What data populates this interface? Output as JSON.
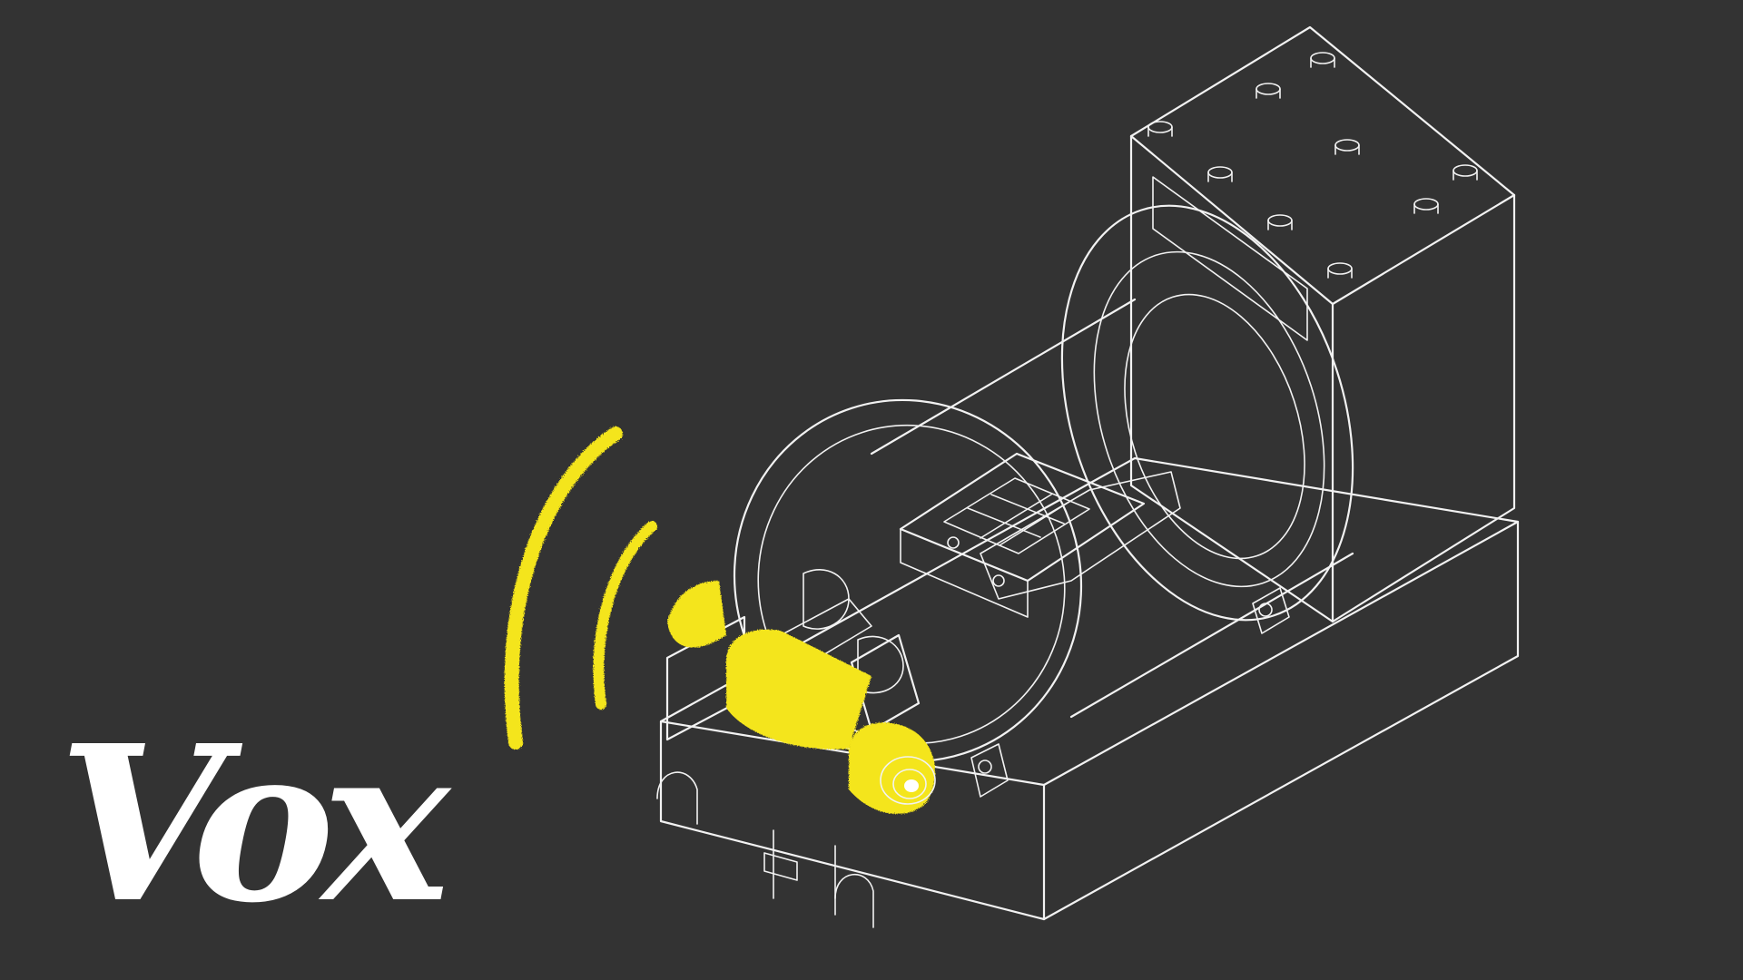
{
  "logo": {
    "text": "Vox"
  },
  "colors": {
    "background": "#333333",
    "line": "#f2f2f2",
    "highlight": "#f4e51a"
  }
}
